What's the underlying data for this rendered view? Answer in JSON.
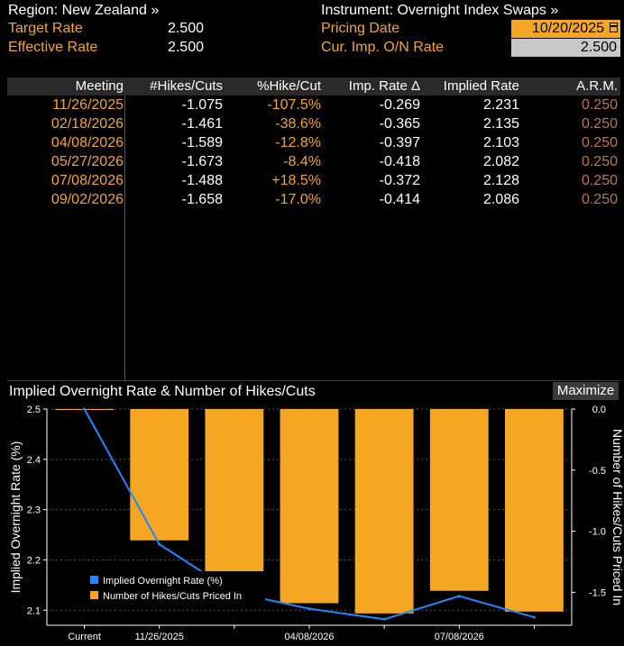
{
  "header": {
    "region_label": "Region: New Zealand »",
    "instrument_label": "Instrument: Overnight Index Swaps »",
    "target_rate_label": "Target Rate",
    "target_rate_value": "2.500",
    "effective_rate_label": "Effective Rate",
    "effective_rate_value": "2.500",
    "pricing_date_label": "Pricing Date",
    "pricing_date_value": "10/20/2025",
    "cur_imp_label": "Cur. Imp. O/N Rate",
    "cur_imp_value": "2.500"
  },
  "table": {
    "columns": [
      "Meeting",
      "#Hikes/Cuts",
      "%Hike/Cut",
      "Imp. Rate Δ",
      "Implied Rate",
      "A.R.M."
    ],
    "rows": [
      {
        "meeting": "11/26/2025",
        "hikes_cuts": "-1.075",
        "pct": "-107.5%",
        "imp_delta": "-0.269",
        "implied": "2.231",
        "arm": "0.250"
      },
      {
        "meeting": "02/18/2026",
        "hikes_cuts": "-1.461",
        "pct": "-38.6%",
        "imp_delta": "-0.365",
        "implied": "2.135",
        "arm": "0.250"
      },
      {
        "meeting": "04/08/2026",
        "hikes_cuts": "-1.589",
        "pct": "-12.8%",
        "imp_delta": "-0.397",
        "implied": "2.103",
        "arm": "0.250"
      },
      {
        "meeting": "05/27/2026",
        "hikes_cuts": "-1.673",
        "pct": "-8.4%",
        "imp_delta": "-0.418",
        "implied": "2.082",
        "arm": "0.250"
      },
      {
        "meeting": "07/08/2026",
        "hikes_cuts": "-1.488",
        "pct": "+18.5%",
        "imp_delta": "-0.372",
        "implied": "2.128",
        "arm": "0.250"
      },
      {
        "meeting": "09/02/2026",
        "hikes_cuts": "-1.658",
        "pct": "-17.0%",
        "imp_delta": "-0.414",
        "implied": "2.086",
        "arm": "0.250"
      }
    ]
  },
  "chart_title": "Implied Overnight Rate & Number of Hikes/Cuts",
  "maximize_label": "Maximize",
  "colors": {
    "accent_orange": "#f5a623",
    "line_blue": "#1e88ff",
    "arm_color": "#b87a4b"
  },
  "chart_data": {
    "type": "bar",
    "categories": [
      "Current",
      "11/26/2025",
      "02/18/2026",
      "04/08/2026",
      "05/27/2026",
      "07/08/2026",
      "09/02/2026"
    ],
    "x_tick_labels": [
      "Current",
      "11/26/2025",
      "",
      "04/08/2026",
      "",
      "07/08/2026",
      ""
    ],
    "series": [
      {
        "name": "Implied Overnight Rate (%)",
        "type": "line",
        "axis": "left",
        "values": [
          2.5,
          2.231,
          2.135,
          2.103,
          2.082,
          2.128,
          2.086
        ]
      },
      {
        "name": "Number of Hikes/Cuts Priced In",
        "type": "bar",
        "axis": "right",
        "values": [
          0.0,
          -1.075,
          -1.461,
          -1.589,
          -1.673,
          -1.488,
          -1.658
        ]
      }
    ],
    "ylabel_left": "Implied Overnight Rate (%)",
    "ylabel_right": "Number of Hikes/Cuts Priced In",
    "ylim_left": [
      2.07,
      2.5
    ],
    "yticks_left": [
      "2.5",
      "2.4",
      "2.3",
      "2.2",
      "2.1"
    ],
    "ylim_right": [
      -1.77,
      0.0
    ],
    "yticks_right": [
      "0.0",
      "-0.5",
      "-1.0",
      "-1.5"
    ],
    "legend_position": "bottom-left"
  }
}
